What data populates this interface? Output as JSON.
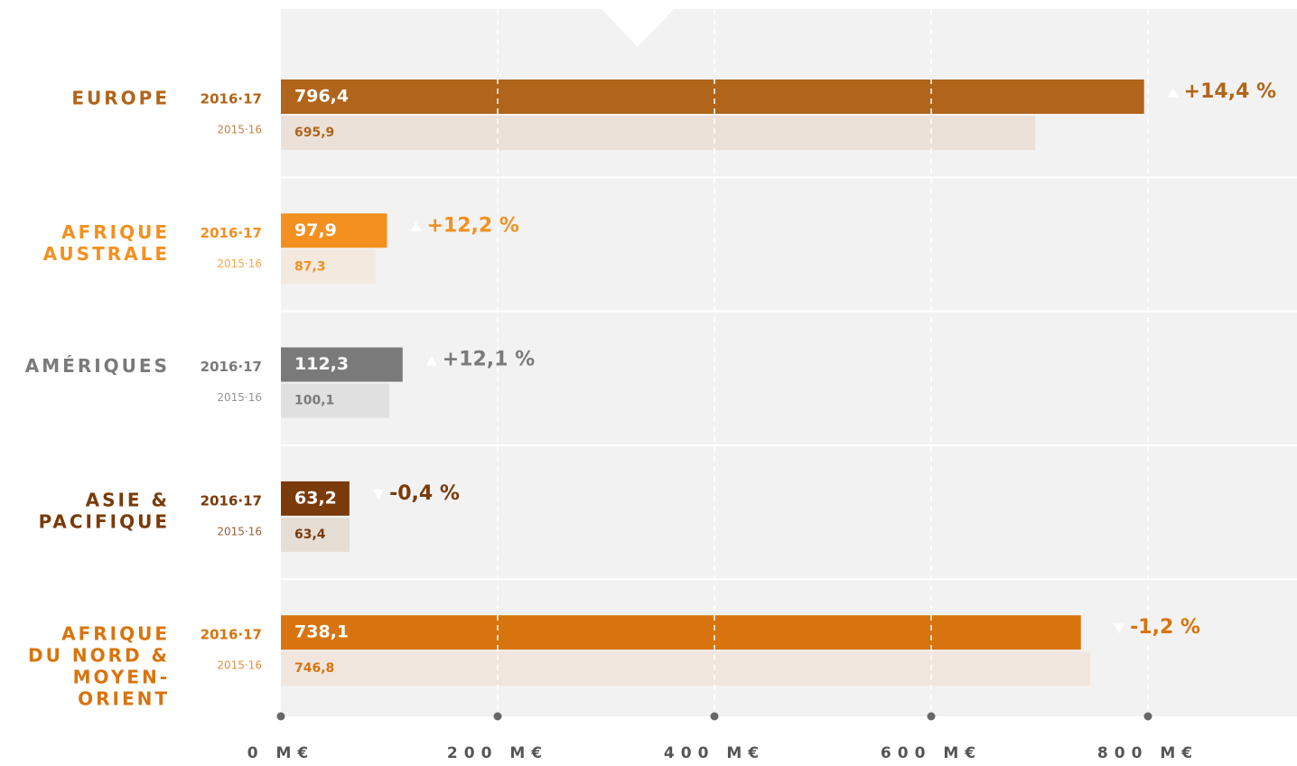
{
  "chart_data": {
    "type": "bar",
    "orientation": "horizontal",
    "categories": [
      [
        "EUROPE"
      ],
      [
        "AFRIQUE",
        "AUSTRALE"
      ],
      [
        "AMÉRIQUES"
      ],
      [
        "ASIE &",
        "PACIFIQUE"
      ],
      [
        "AFRIQUE",
        "DU NORD &",
        "MOYEN-",
        "ORIENT"
      ]
    ],
    "series": [
      {
        "name": "2016·17",
        "values": [
          796.4,
          97.9,
          112.3,
          63.2,
          738.1
        ],
        "value_labels": [
          "796,4",
          "97,9",
          "112,3",
          "63,2",
          "738,1"
        ],
        "colors": [
          "#b0651a",
          "#f39020",
          "#7a7a7a",
          "#7a3a0a",
          "#d8740e"
        ]
      },
      {
        "name": "2015·16",
        "values": [
          695.9,
          87.3,
          100.1,
          63.4,
          746.8
        ],
        "value_labels": [
          "695,9",
          "87,3",
          "100,1",
          "63,4",
          "746,8"
        ],
        "colors": [
          "#ebe1d9",
          "#f4e9df",
          "#e0e0e0",
          "#e6ddd5",
          "#f0e6de"
        ]
      }
    ],
    "changes": [
      14.4,
      12.2,
      12.1,
      -0.4,
      -1.2
    ],
    "change_labels": [
      "+14,4 %",
      "+12,2 %",
      "+12,1 %",
      "-0,4 %",
      "-1,2 %"
    ],
    "xlim": [
      0,
      937.5
    ],
    "xticks": [
      {
        "value": 0,
        "label": "0 M€"
      },
      {
        "value": 200,
        "label": "200 M€"
      },
      {
        "value": 400,
        "label": "400 M€"
      },
      {
        "value": 600,
        "label": "600 M€"
      },
      {
        "value": 800,
        "label": "800 M€"
      }
    ],
    "grid": true
  }
}
